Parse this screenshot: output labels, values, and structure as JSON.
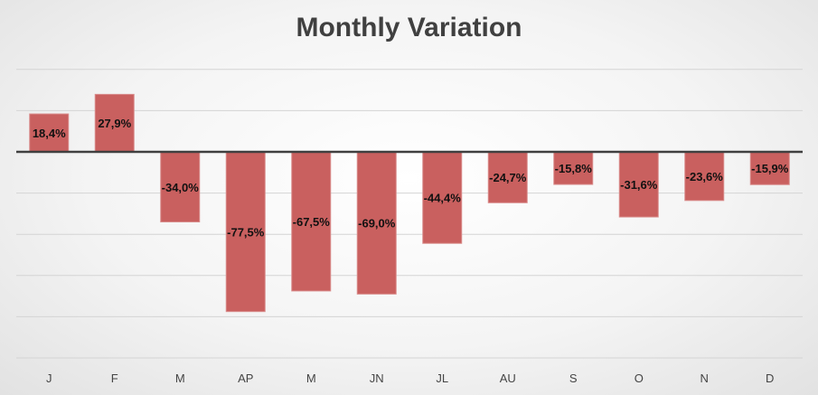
{
  "chart_data": {
    "type": "bar",
    "title": "Monthly Variation",
    "xlabel": "",
    "ylabel": "",
    "categories": [
      "J",
      "F",
      "M",
      "AP",
      "M",
      "JN",
      "JL",
      "AU",
      "S",
      "O",
      "N",
      "D"
    ],
    "values": [
      18.4,
      27.9,
      -34.0,
      -77.5,
      -67.5,
      -69.0,
      -44.4,
      -24.7,
      -15.8,
      -31.6,
      -23.6,
      -15.9
    ],
    "value_labels": [
      "18,4%",
      "27,9%",
      "-34,0%",
      "-77,5%",
      "-67,5%",
      "-69,0%",
      "-44,4%",
      "-24,7%",
      "-15,8%",
      "-31,6%",
      "-23,6%",
      "-15,9%"
    ],
    "ylim": [
      -100,
      40
    ],
    "grid": true,
    "axis_labels_visible": false,
    "bar_color": "#c9605f"
  }
}
